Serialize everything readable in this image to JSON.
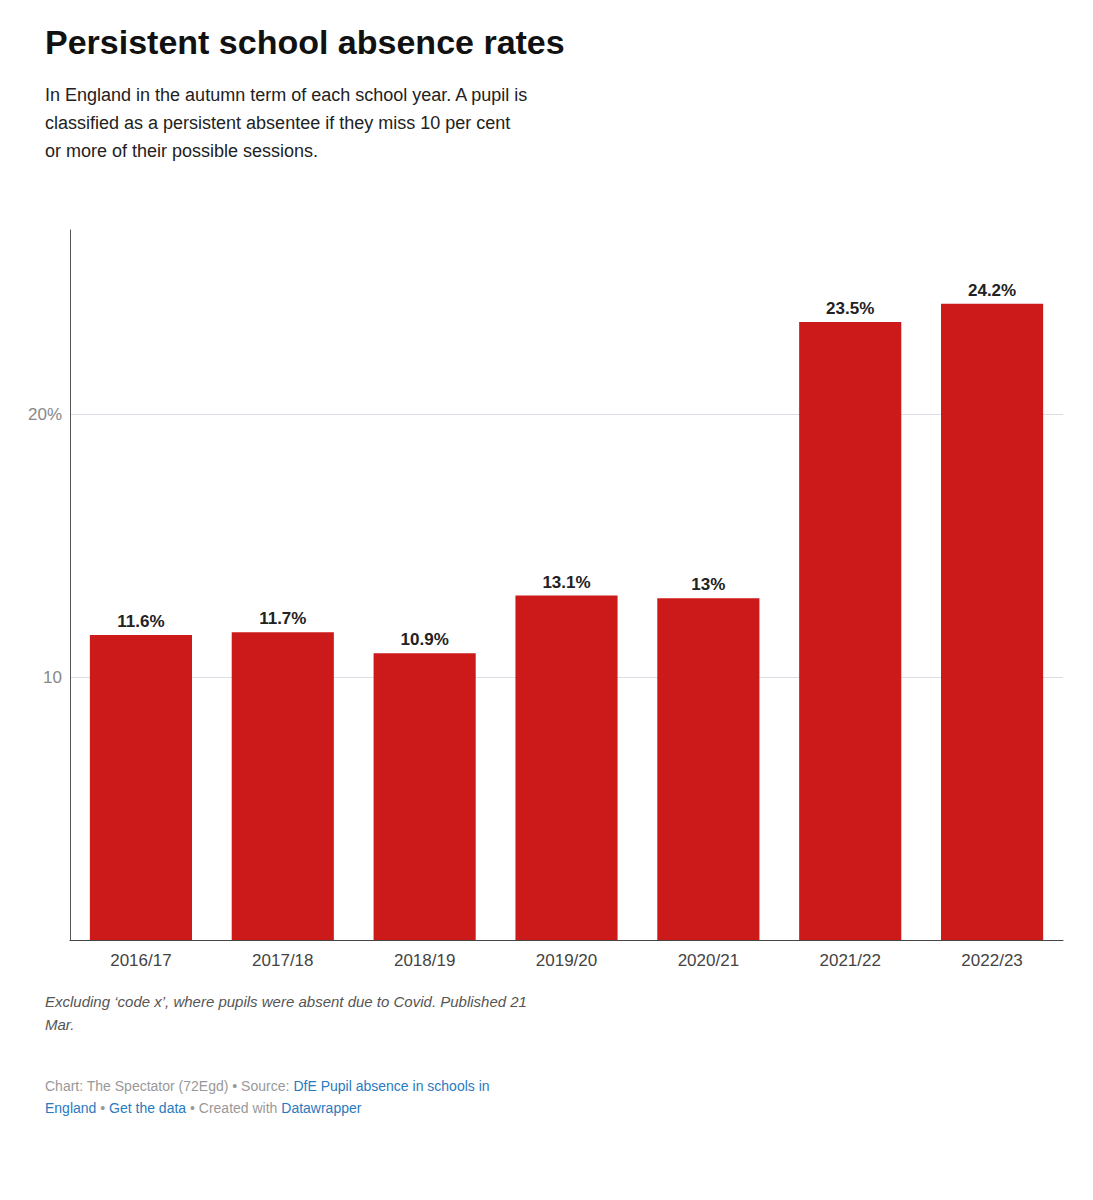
{
  "chart_data": {
    "type": "bar",
    "title": "Persistent school absence rates",
    "subtitle": "In England in the autumn term of each school year. A pupil is\nclassified as a persistent absentee if they miss 10 per cent\nor more of their possible sessions.",
    "categories": [
      "2016/17",
      "2017/18",
      "2018/19",
      "2019/20",
      "2020/21",
      "2021/22",
      "2022/23"
    ],
    "values": [
      11.6,
      11.7,
      10.9,
      13.1,
      13.0,
      23.5,
      24.2
    ],
    "value_labels": [
      "11.6%",
      "11.7%",
      "10.9%",
      "13.1%",
      "13%",
      "23.5%",
      "24.2%"
    ],
    "color": "#cc1a1a",
    "ylim": [
      0,
      27
    ],
    "yticks": [
      10,
      {
        "value": 20,
        "label": "20%"
      }
    ],
    "grid": true,
    "data_labels": true,
    "footnote": "Excluding ‘code x’, where pupils were absent due to Covid. Published 21\nMar.",
    "footer": [
      [
        {
          "text": "Chart: The Spectator (72Egd) • Source: ",
          "color": "#999999"
        },
        {
          "text": "DfE Pupil absence in schools in",
          "color": "#2a7abf"
        }
      ],
      [
        {
          "text": "England",
          "color": "#2a7abf"
        },
        {
          "text": " • ",
          "color": "#999999"
        },
        {
          "text": "Get the data",
          "color": "#2a7abf"
        },
        {
          "text": " • Created with ",
          "color": "#999999"
        },
        {
          "text": "Datawrapper",
          "color": "#2a7abf"
        }
      ]
    ]
  }
}
